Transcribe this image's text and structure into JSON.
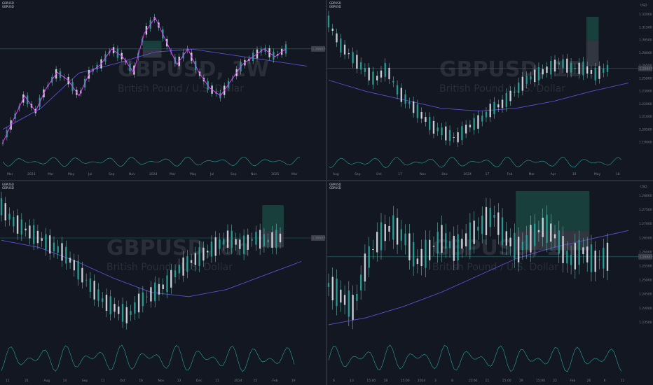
{
  "layout_panels": [
    {
      "id": "weekly",
      "header": [
        "GBPUSD",
        "GBPUSD",
        "GBPUSD"
      ],
      "watermark_symbol": "GBPUSD, 1W",
      "watermark_subtitle": "British Pound / U.S. Dollar",
      "currency_label": "",
      "time_labels": [
        "Mar",
        "2023",
        "Mar",
        "May",
        "Jul",
        "Sep",
        "Nov",
        "2024",
        "Mar",
        "May",
        "Jul",
        "Sep",
        "Nov",
        "2025",
        "Mar"
      ],
      "price_labels": [],
      "price_box": "1.26667",
      "accent": "#e040fb"
    },
    {
      "id": "daily",
      "header": [
        "GBPUSD",
        "GBPUSD"
      ],
      "watermark_symbol": "GBPUSD, 1D",
      "watermark_subtitle": "British Pound / U.S. Dollar",
      "currency_label": "USD",
      "time_labels": [
        "Aug",
        "Sep",
        "Oct",
        "17",
        "Nov",
        "Dec",
        "2024",
        "17",
        "Feb",
        "Mar",
        "Apr",
        "18",
        "May",
        "18"
      ],
      "price_labels": [
        "1.32000",
        "1.31500",
        "1.30500",
        "1.28000",
        "1.26500",
        "1.25000",
        "1.23000",
        "1.22000",
        "1.21000",
        "1.20500",
        "1.19000"
      ],
      "price_box": "1.26667",
      "accent": "#e040fb"
    },
    {
      "id": "8h",
      "header": [
        "GBPUSD",
        "GBPUSD"
      ],
      "watermark_symbol": "GBPUSD, 8h",
      "watermark_subtitle": "British Pound / U.S. Dollar",
      "currency_label": "",
      "time_labels": [
        "11",
        "21",
        "Aug",
        "14",
        "Sep",
        "11",
        "Oct",
        "16",
        "Nov",
        "13",
        "Dec",
        "11",
        "2024",
        "15",
        "Feb",
        "19"
      ],
      "price_labels": [],
      "price_box": "1.26667",
      "accent": "#e040fb"
    },
    {
      "id": "1h",
      "header": [
        "GBPUSD",
        "GBPUSD"
      ],
      "watermark_symbol": "GBPUSD, 1h",
      "watermark_subtitle": "British Pound / U.S. Dollar",
      "currency_label": "USD",
      "time_labels": [
        "6",
        "13",
        "15:00",
        "18",
        "15:00",
        "2024",
        "3",
        "8",
        "15:00",
        "11",
        "15:00",
        "19",
        "15:00",
        "22",
        "Feb",
        "26",
        "6",
        "12"
      ],
      "price_labels": [
        "1.28000",
        "1.27500",
        "1.27000",
        "1.26500",
        "1.26000",
        "1.25500",
        "1.25000",
        "1.24500",
        "1.24000",
        "1.23500"
      ],
      "price_box": "1.26667",
      "accent": "#e040fb"
    }
  ],
  "chart_data": [
    {
      "type": "line",
      "panel": "weekly",
      "title": "GBPUSD, 1W",
      "series": [
        {
          "values": [
            1.15,
            1.18,
            1.21,
            1.19,
            1.22,
            1.24,
            1.23,
            1.21,
            1.24,
            1.25,
            1.27,
            1.26,
            1.24,
            1.29,
            1.31,
            1.28,
            1.25,
            1.27,
            1.24,
            1.22,
            1.21,
            1.23,
            1.25,
            1.26,
            1.27,
            1.26,
            1.27
          ]
        }
      ]
    },
    {
      "type": "line",
      "panel": "daily",
      "title": "GBPUSD, 1D",
      "series": [
        {
          "values": [
            1.31,
            1.29,
            1.28,
            1.27,
            1.26,
            1.27,
            1.25,
            1.24,
            1.23,
            1.22,
            1.215,
            1.21,
            1.22,
            1.225,
            1.235,
            1.24,
            1.25,
            1.26,
            1.265,
            1.27,
            1.275,
            1.27,
            1.27,
            1.265,
            1.27
          ]
        }
      ]
    },
    {
      "type": "line",
      "panel": "8h",
      "title": "GBPUSD, 8h",
      "series": [
        {
          "values": [
            1.29,
            1.28,
            1.275,
            1.27,
            1.265,
            1.26,
            1.25,
            1.24,
            1.23,
            1.225,
            1.22,
            1.23,
            1.235,
            1.24,
            1.25,
            1.255,
            1.26,
            1.265,
            1.27,
            1.265,
            1.27,
            1.268,
            1.27
          ]
        }
      ]
    },
    {
      "type": "line",
      "panel": "1h",
      "title": "GBPUSD, 1h",
      "series": [
        {
          "values": [
            1.25,
            1.245,
            1.24,
            1.26,
            1.27,
            1.275,
            1.27,
            1.26,
            1.265,
            1.27,
            1.265,
            1.27,
            1.275,
            1.28,
            1.27,
            1.265,
            1.27,
            1.275,
            1.27,
            1.26,
            1.265,
            1.26,
            1.262
          ]
        }
      ]
    }
  ]
}
